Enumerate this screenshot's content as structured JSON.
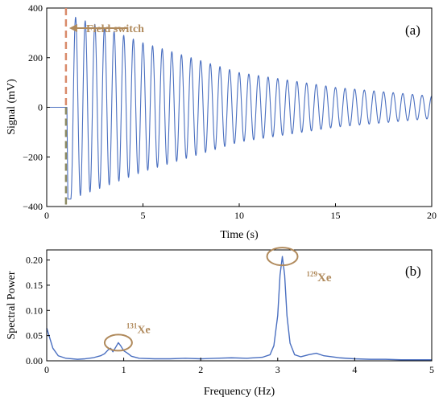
{
  "chart_data": [
    {
      "type": "line",
      "panel_label": "(a)",
      "xlabel": "Time (s)",
      "ylabel": "Signal (mV)",
      "xlim": [
        0,
        20
      ],
      "ylim": [
        -400,
        400
      ],
      "xticks": [
        0,
        5,
        10,
        15,
        20
      ],
      "yticks": [
        -400,
        -200,
        0,
        200,
        400
      ],
      "xtick_labels": [
        "0",
        "5",
        "10",
        "15",
        "20"
      ],
      "ytick_labels": [
        "−400",
        "−200",
        "0",
        "200",
        "400"
      ],
      "grid": false,
      "series": [
        {
          "color": "#4a6fc0",
          "signal": {
            "baseline_until_s": 1.05,
            "baseline_value": 0,
            "oscillation_start_s": 1.25,
            "frequency_hz": 2.0,
            "amplitude_mV": [
              [
                1.25,
                370
              ],
              [
                3,
                320
              ],
              [
                5,
                260
              ],
              [
                10,
                140
              ],
              [
                15,
                80
              ],
              [
                20,
                45
              ]
            ]
          }
        }
      ],
      "annotations": [
        {
          "text": "Field switch",
          "x": 1.0,
          "type": "vertical-dashed-line-with-arrow",
          "color": "#b08a5c"
        }
      ]
    },
    {
      "type": "line",
      "panel_label": "(b)",
      "xlabel": "Frequency (Hz)",
      "ylabel": "Spectral Power",
      "xlim": [
        0,
        5
      ],
      "ylim": [
        0,
        0.22
      ],
      "xticks": [
        0,
        1,
        2,
        3,
        4,
        5
      ],
      "yticks": [
        0.0,
        0.05,
        0.1,
        0.15,
        0.2
      ],
      "xtick_labels": [
        "0",
        "1",
        "2",
        "3",
        "4",
        "5"
      ],
      "ytick_labels": [
        "0.00",
        "0.05",
        "0.10",
        "0.15",
        "0.20"
      ],
      "grid": false,
      "series": [
        {
          "color": "#4a6fc0",
          "x": [
            0,
            0.03,
            0.08,
            0.15,
            0.25,
            0.4,
            0.5,
            0.6,
            0.7,
            0.75,
            0.8,
            0.83,
            0.86,
            0.9,
            0.93,
            0.96,
            1.0,
            1.05,
            1.1,
            1.2,
            1.4,
            1.6,
            1.8,
            2.0,
            2.2,
            2.4,
            2.6,
            2.8,
            2.9,
            2.95,
            3.0,
            3.03,
            3.06,
            3.09,
            3.12,
            3.16,
            3.22,
            3.3,
            3.4,
            3.5,
            3.6,
            3.7,
            3.8,
            4.0,
            4.2,
            4.4,
            4.6,
            4.8,
            5.0
          ],
          "y": [
            0.065,
            0.05,
            0.025,
            0.01,
            0.005,
            0.003,
            0.004,
            0.006,
            0.01,
            0.014,
            0.022,
            0.025,
            0.018,
            0.028,
            0.036,
            0.03,
            0.02,
            0.015,
            0.009,
            0.005,
            0.004,
            0.004,
            0.005,
            0.004,
            0.005,
            0.006,
            0.005,
            0.007,
            0.012,
            0.03,
            0.09,
            0.17,
            0.207,
            0.17,
            0.09,
            0.035,
            0.012,
            0.008,
            0.012,
            0.015,
            0.01,
            0.008,
            0.006,
            0.004,
            0.003,
            0.003,
            0.002,
            0.002,
            0.002
          ]
        }
      ],
      "annotations": [
        {
          "text": "Xe",
          "superscript": "129",
          "x": 3.06,
          "y": 0.207,
          "color": "#b08a5c"
        },
        {
          "text": "Xe",
          "superscript": "131",
          "x": 0.93,
          "y": 0.036,
          "color": "#b08a5c"
        }
      ]
    }
  ]
}
